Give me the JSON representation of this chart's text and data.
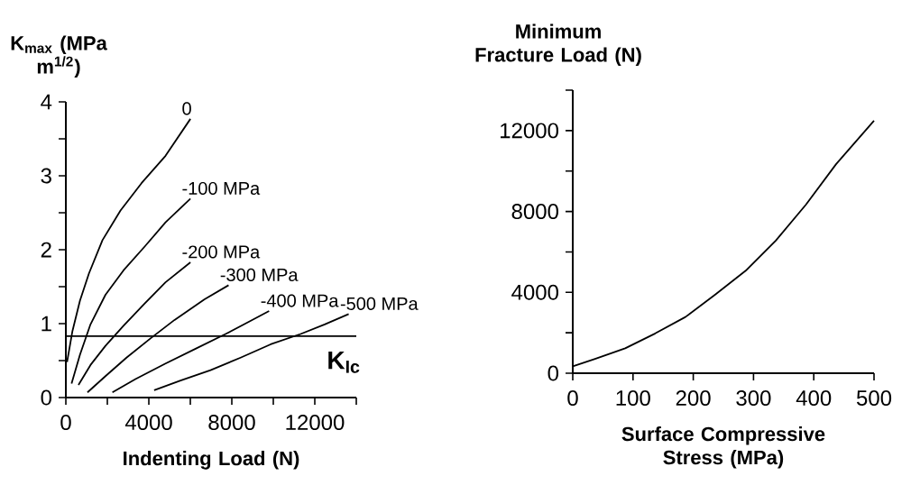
{
  "chart_data": [
    {
      "type": "line",
      "ylabel": "K$_{max}$ (MPa m$^{1/2}$)",
      "xlabel": "Indenting Load (N)",
      "xlim": [
        0,
        14000
      ],
      "ylim": [
        0,
        4
      ],
      "xticks": [
        0,
        {
          "value": 2000,
          "label": null
        },
        4000,
        {
          "value": 6000,
          "label": null
        },
        8000,
        {
          "value": 10000,
          "label": null
        },
        12000,
        {
          "value": 14000,
          "label": null
        }
      ],
      "yticks": [
        0,
        {
          "value": 0.5,
          "label": null
        },
        1,
        {
          "value": 1.5,
          "label": null
        },
        2,
        {
          "value": 2.5,
          "label": null
        },
        3,
        {
          "value": 3.5,
          "label": null
        },
        4
      ],
      "series": [
        {
          "name": "0",
          "color": "#000000",
          "x": [
            58,
            318,
            680,
            1114,
            1766,
            2634,
            3647,
            4805,
            6005
          ],
          "values": [
            0.48,
            0.9,
            1.31,
            1.68,
            2.13,
            2.53,
            2.9,
            3.27,
            3.77
          ]
        },
        {
          "name": "-100 MPa",
          "color": "#000000",
          "x": [
            275,
            680,
            1187,
            1910,
            2778,
            3791,
            4805,
            6005
          ],
          "values": [
            0.19,
            0.58,
            0.99,
            1.39,
            1.72,
            2.04,
            2.37,
            2.69
          ]
        },
        {
          "name": "-200 MPa",
          "color": "#000000",
          "x": [
            608,
            1187,
            1910,
            2778,
            3791,
            4805,
            6005
          ],
          "values": [
            0.17,
            0.44,
            0.7,
            0.97,
            1.27,
            1.56,
            1.83
          ]
        },
        {
          "name": "-300 MPa",
          "color": "#000000",
          "x": [
            1042,
            1910,
            2923,
            4081,
            5239,
            6686,
            7844
          ],
          "values": [
            0.07,
            0.29,
            0.54,
            0.8,
            1.05,
            1.33,
            1.52
          ]
        },
        {
          "name": "-400 MPa",
          "color": "#000000",
          "x": [
            2243,
            3357,
            4805,
            6252,
            7699,
            8857,
            9797
          ],
          "values": [
            0.07,
            0.25,
            0.46,
            0.66,
            0.86,
            1.03,
            1.17
          ]
        },
        {
          "name": "-500 MPa",
          "color": "#000000",
          "x": [
            4255,
            5528,
            6975,
            8422,
            9870,
            11317,
            12475,
            13633
          ],
          "values": [
            0.1,
            0.23,
            0.37,
            0.54,
            0.72,
            0.86,
            0.99,
            1.13
          ]
        }
      ],
      "ref_lines": [
        {
          "axis": "y",
          "value": 0.83,
          "label": "K$_{Ic}$",
          "color": "#000000"
        }
      ],
      "grid": false,
      "legend": false,
      "marker": "none",
      "line_style": "solid"
    },
    {
      "type": "line",
      "ylabel": "Minimum Fracture Load (N)",
      "xlabel": "Surface Compressive Stress (MPa)",
      "xlim": [
        0,
        500
      ],
      "ylim": [
        0,
        14000
      ],
      "xticks": [
        0,
        100,
        200,
        300,
        400,
        500
      ],
      "yticks": [
        0,
        {
          "value": 2000,
          "label": null
        },
        4000,
        {
          "value": 6000,
          "label": null
        },
        8000,
        {
          "value": 10000,
          "label": null
        },
        12000,
        {
          "value": 14000,
          "label": null
        }
      ],
      "series": [
        {
          "color": "#000000",
          "x": [
            0,
            37,
            87,
            137,
            187,
            237,
            287,
            337,
            387,
            437,
            500
          ],
          "values": [
            340,
            710,
            1230,
            1970,
            2780,
            3900,
            5070,
            6560,
            8340,
            10340,
            12490
          ]
        }
      ],
      "grid": false,
      "legend": false,
      "marker": "none",
      "line_style": "solid"
    }
  ]
}
